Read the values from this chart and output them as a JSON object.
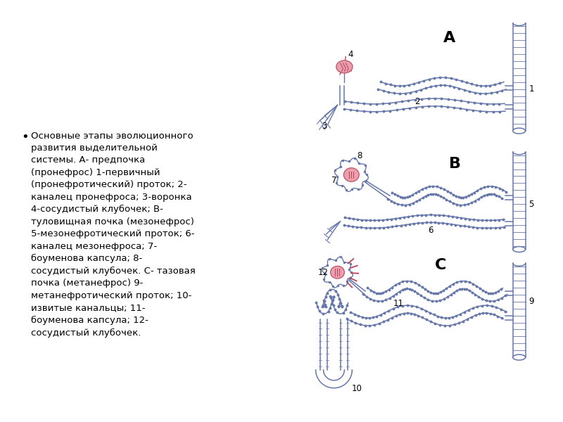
{
  "background_color": "#ffffff",
  "fig_width": 8.0,
  "fig_height": 6.0,
  "dpi": 100,
  "bullet_text": "Основные этапы эволюционного\nразвития выделительной\nсистемы. А- предпочка\n(пронефрос) 1-первичный\n(пронефротический) проток; 2-\nканалец пронефроса; 3-воронка\n4-сосудистый клубочек; В-\nтуловищная почка (мезонефрос)\n5-мезонефротический проток; 6-\nканалец мезонефроса; 7-\nбоуменова капсула; 8-\nсосудистый клубочек. С- тазовая\nпочка (метанефрос) 9-\nметанефротический проток; 10-\nизвитые канальцы; 11-\nбоуменова капсула; 12-\nсосудистый клубочек.",
  "text_fontsize": 9.5,
  "text_color": "#000000",
  "tube_color": "#6677aa",
  "glom_face": "#e8a0b0",
  "glom_edge": "#bb4455",
  "label_A": "A",
  "label_B": "B",
  "label_C": "C"
}
